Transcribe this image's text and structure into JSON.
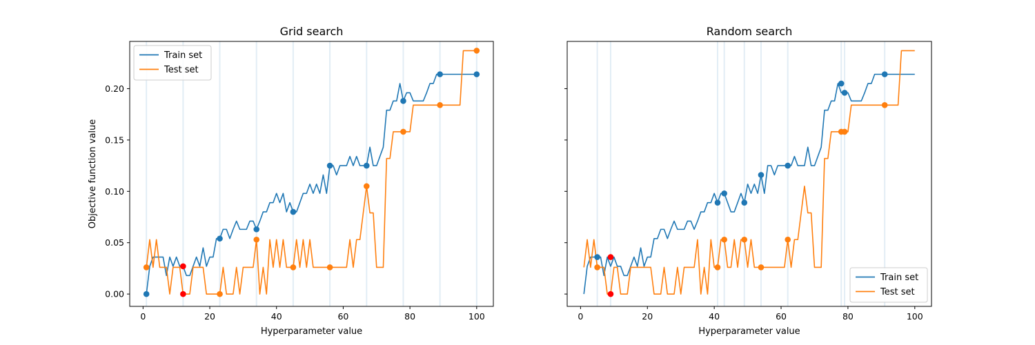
{
  "chart_data": [
    {
      "type": "line",
      "title": "Grid search",
      "xlabel": "Hyperparameter value",
      "ylabel": "Objective function value",
      "xlim": [
        -4,
        105
      ],
      "ylim": [
        -0.012,
        0.246
      ],
      "xticks": [
        0,
        20,
        40,
        60,
        80,
        100
      ],
      "yticks": [
        0.0,
        0.05,
        0.1,
        0.15,
        0.2
      ],
      "ytick_labels": [
        "0.00",
        "0.05",
        "0.10",
        "0.15",
        "0.20"
      ],
      "legend": {
        "position": "top-left",
        "entries": [
          "Train set",
          "Test set"
        ]
      },
      "vlines": [
        1,
        12,
        23,
        34,
        45,
        56,
        67,
        78,
        89,
        100
      ],
      "series": [
        {
          "name": "Train set",
          "color": "#1f77b4",
          "x": [
            1,
            2,
            3,
            4,
            5,
            6,
            7,
            8,
            9,
            10,
            11,
            12,
            13,
            14,
            15,
            16,
            17,
            18,
            19,
            20,
            21,
            22,
            23,
            24,
            25,
            26,
            27,
            28,
            29,
            30,
            31,
            32,
            33,
            34,
            35,
            36,
            37,
            38,
            39,
            40,
            41,
            42,
            43,
            44,
            45,
            46,
            47,
            48,
            49,
            50,
            51,
            52,
            53,
            54,
            55,
            56,
            57,
            58,
            59,
            60,
            61,
            62,
            63,
            64,
            65,
            66,
            67,
            68,
            69,
            70,
            71,
            72,
            73,
            74,
            75,
            76,
            77,
            78,
            79,
            80,
            81,
            82,
            83,
            84,
            85,
            86,
            87,
            88,
            89,
            90,
            91,
            92,
            93,
            94,
            95,
            96,
            97,
            98,
            99,
            100
          ],
          "y": [
            0.0,
            0.027,
            0.036,
            0.036,
            0.036,
            0.036,
            0.018,
            0.036,
            0.027,
            0.036,
            0.027,
            0.027,
            0.018,
            0.018,
            0.027,
            0.036,
            0.027,
            0.045,
            0.027,
            0.036,
            0.036,
            0.054,
            0.054,
            0.063,
            0.063,
            0.054,
            0.063,
            0.071,
            0.063,
            0.063,
            0.063,
            0.071,
            0.071,
            0.063,
            0.071,
            0.08,
            0.08,
            0.089,
            0.089,
            0.098,
            0.089,
            0.098,
            0.08,
            0.089,
            0.08,
            0.08,
            0.089,
            0.098,
            0.098,
            0.107,
            0.098,
            0.107,
            0.098,
            0.116,
            0.098,
            0.125,
            0.125,
            0.116,
            0.125,
            0.125,
            0.125,
            0.134,
            0.125,
            0.134,
            0.125,
            0.125,
            0.125,
            0.143,
            0.125,
            0.125,
            0.134,
            0.143,
            0.179,
            0.179,
            0.188,
            0.188,
            0.205,
            0.188,
            0.196,
            0.196,
            0.188,
            0.188,
            0.188,
            0.188,
            0.196,
            0.205,
            0.205,
            0.214,
            0.214,
            0.214,
            0.214,
            0.214,
            0.214,
            0.214,
            0.214,
            0.214,
            0.214,
            0.214,
            0.214,
            0.214
          ]
        },
        {
          "name": "Test set",
          "color": "#ff7f0e",
          "x": [
            1,
            2,
            3,
            4,
            5,
            6,
            7,
            8,
            9,
            10,
            11,
            12,
            13,
            14,
            15,
            16,
            17,
            18,
            19,
            20,
            21,
            22,
            23,
            24,
            25,
            26,
            27,
            28,
            29,
            30,
            31,
            32,
            33,
            34,
            35,
            36,
            37,
            38,
            39,
            40,
            41,
            42,
            43,
            44,
            45,
            46,
            47,
            48,
            49,
            50,
            51,
            52,
            53,
            54,
            55,
            56,
            57,
            58,
            59,
            60,
            61,
            62,
            63,
            64,
            65,
            66,
            67,
            68,
            69,
            70,
            71,
            72,
            73,
            74,
            75,
            76,
            77,
            78,
            79,
            80,
            81,
            82,
            83,
            84,
            85,
            86,
            87,
            88,
            89,
            90,
            91,
            92,
            93,
            94,
            95,
            96,
            97,
            98,
            99,
            100
          ],
          "y": [
            0.026,
            0.053,
            0.026,
            0.053,
            0.026,
            0.026,
            0.026,
            0.0,
            0.026,
            0.026,
            0.026,
            0.0,
            0.0,
            0.0,
            0.026,
            0.026,
            0.026,
            0.026,
            0.0,
            0.0,
            0.0,
            0.0,
            0.0,
            0.026,
            0.0,
            0.0,
            0.0,
            0.026,
            0.0,
            0.026,
            0.026,
            0.026,
            0.026,
            0.053,
            0.0,
            0.026,
            0.0,
            0.053,
            0.026,
            0.053,
            0.026,
            0.053,
            0.026,
            0.026,
            0.026,
            0.053,
            0.026,
            0.053,
            0.026,
            0.053,
            0.026,
            0.026,
            0.026,
            0.026,
            0.026,
            0.026,
            0.026,
            0.026,
            0.026,
            0.026,
            0.026,
            0.053,
            0.026,
            0.053,
            0.053,
            0.079,
            0.105,
            0.079,
            0.079,
            0.026,
            0.026,
            0.026,
            0.132,
            0.132,
            0.158,
            0.158,
            0.158,
            0.158,
            0.158,
            0.158,
            0.184,
            0.184,
            0.184,
            0.184,
            0.184,
            0.184,
            0.184,
            0.184,
            0.184,
            0.184,
            0.184,
            0.184,
            0.184,
            0.184,
            0.184,
            0.237,
            0.237,
            0.237,
            0.237,
            0.237
          ]
        }
      ],
      "markers": [
        {
          "series": "Train set",
          "color": "#1f77b4",
          "x": [
            1,
            23,
            34,
            45,
            56,
            67,
            78,
            89,
            100
          ],
          "y": [
            0.0,
            0.054,
            0.063,
            0.08,
            0.125,
            0.125,
            0.188,
            0.214,
            0.214
          ]
        },
        {
          "series": "Test set",
          "color": "#ff7f0e",
          "x": [
            1,
            23,
            34,
            45,
            56,
            67,
            78,
            89,
            100
          ],
          "y": [
            0.026,
            0.0,
            0.053,
            0.026,
            0.026,
            0.105,
            0.158,
            0.184,
            0.237
          ]
        },
        {
          "series": "best",
          "color": "#ff0000",
          "x": [
            12,
            12
          ],
          "y": [
            0.027,
            0.0
          ]
        }
      ]
    },
    {
      "type": "line",
      "title": "Random search",
      "xlabel": "Hyperparameter value",
      "ylabel": "",
      "xlim": [
        -4,
        105
      ],
      "ylim": [
        -0.012,
        0.246
      ],
      "xticks": [
        0,
        20,
        40,
        60,
        80,
        100
      ],
      "yticks": [
        0.0,
        0.05,
        0.1,
        0.15,
        0.2
      ],
      "ytick_labels": [],
      "legend": {
        "position": "bottom-right",
        "entries": [
          "Train set",
          "Test set"
        ]
      },
      "vlines": [
        5,
        9,
        41,
        43,
        49,
        54,
        62,
        78,
        79,
        91
      ],
      "series": [
        {
          "name": "Train set",
          "color": "#1f77b4",
          "x": [
            1,
            2,
            3,
            4,
            5,
            6,
            7,
            8,
            9,
            10,
            11,
            12,
            13,
            14,
            15,
            16,
            17,
            18,
            19,
            20,
            21,
            22,
            23,
            24,
            25,
            26,
            27,
            28,
            29,
            30,
            31,
            32,
            33,
            34,
            35,
            36,
            37,
            38,
            39,
            40,
            41,
            42,
            43,
            44,
            45,
            46,
            47,
            48,
            49,
            50,
            51,
            52,
            53,
            54,
            55,
            56,
            57,
            58,
            59,
            60,
            61,
            62,
            63,
            64,
            65,
            66,
            67,
            68,
            69,
            70,
            71,
            72,
            73,
            74,
            75,
            76,
            77,
            78,
            79,
            80,
            81,
            82,
            83,
            84,
            85,
            86,
            87,
            88,
            89,
            90,
            91,
            92,
            93,
            94,
            95,
            96,
            97,
            98,
            99,
            100
          ],
          "y": [
            0.0,
            0.027,
            0.036,
            0.036,
            0.036,
            0.036,
            0.018,
            0.036,
            0.027,
            0.036,
            0.027,
            0.027,
            0.018,
            0.018,
            0.027,
            0.036,
            0.027,
            0.045,
            0.027,
            0.036,
            0.036,
            0.054,
            0.054,
            0.063,
            0.063,
            0.054,
            0.063,
            0.071,
            0.063,
            0.063,
            0.063,
            0.071,
            0.071,
            0.063,
            0.071,
            0.08,
            0.08,
            0.089,
            0.089,
            0.098,
            0.089,
            0.098,
            0.098,
            0.089,
            0.08,
            0.08,
            0.089,
            0.098,
            0.089,
            0.107,
            0.098,
            0.107,
            0.098,
            0.116,
            0.098,
            0.125,
            0.125,
            0.116,
            0.125,
            0.125,
            0.125,
            0.125,
            0.125,
            0.134,
            0.125,
            0.125,
            0.125,
            0.143,
            0.125,
            0.125,
            0.134,
            0.143,
            0.179,
            0.179,
            0.188,
            0.188,
            0.205,
            0.196,
            0.196,
            0.196,
            0.188,
            0.188,
            0.188,
            0.188,
            0.196,
            0.205,
            0.205,
            0.214,
            0.214,
            0.214,
            0.214,
            0.214,
            0.214,
            0.214,
            0.214,
            0.214,
            0.214,
            0.214,
            0.214,
            0.214
          ]
        },
        {
          "name": "Test set",
          "color": "#ff7f0e",
          "x": [
            1,
            2,
            3,
            4,
            5,
            6,
            7,
            8,
            9,
            10,
            11,
            12,
            13,
            14,
            15,
            16,
            17,
            18,
            19,
            20,
            21,
            22,
            23,
            24,
            25,
            26,
            27,
            28,
            29,
            30,
            31,
            32,
            33,
            34,
            35,
            36,
            37,
            38,
            39,
            40,
            41,
            42,
            43,
            44,
            45,
            46,
            47,
            48,
            49,
            50,
            51,
            52,
            53,
            54,
            55,
            56,
            57,
            58,
            59,
            60,
            61,
            62,
            63,
            64,
            65,
            66,
            67,
            68,
            69,
            70,
            71,
            72,
            73,
            74,
            75,
            76,
            77,
            78,
            79,
            80,
            81,
            82,
            83,
            84,
            85,
            86,
            87,
            88,
            89,
            90,
            91,
            92,
            93,
            94,
            95,
            96,
            97,
            98,
            99,
            100
          ],
          "y": [
            0.026,
            0.053,
            0.026,
            0.053,
            0.026,
            0.026,
            0.026,
            0.0,
            0.0,
            0.026,
            0.026,
            0.0,
            0.0,
            0.0,
            0.026,
            0.026,
            0.026,
            0.026,
            0.026,
            0.026,
            0.026,
            0.0,
            0.0,
            0.0,
            0.026,
            0.0,
            0.0,
            0.0,
            0.026,
            0.0,
            0.026,
            0.026,
            0.026,
            0.026,
            0.053,
            0.0,
            0.026,
            0.0,
            0.053,
            0.026,
            0.026,
            0.053,
            0.053,
            0.026,
            0.026,
            0.053,
            0.026,
            0.053,
            0.053,
            0.026,
            0.053,
            0.026,
            0.026,
            0.026,
            0.026,
            0.026,
            0.026,
            0.026,
            0.026,
            0.026,
            0.026,
            0.053,
            0.026,
            0.053,
            0.053,
            0.079,
            0.105,
            0.079,
            0.079,
            0.026,
            0.026,
            0.026,
            0.132,
            0.132,
            0.158,
            0.158,
            0.158,
            0.158,
            0.158,
            0.158,
            0.184,
            0.184,
            0.184,
            0.184,
            0.184,
            0.184,
            0.184,
            0.184,
            0.184,
            0.184,
            0.184,
            0.184,
            0.184,
            0.184,
            0.184,
            0.237,
            0.237,
            0.237,
            0.237,
            0.237
          ]
        }
      ],
      "markers": [
        {
          "series": "Train set",
          "color": "#1f77b4",
          "x": [
            5,
            41,
            43,
            49,
            54,
            62,
            78,
            79,
            91
          ],
          "y": [
            0.036,
            0.089,
            0.098,
            0.089,
            0.116,
            0.125,
            0.205,
            0.196,
            0.214
          ]
        },
        {
          "series": "Test set",
          "color": "#ff7f0e",
          "x": [
            5,
            41,
            43,
            49,
            54,
            62,
            78,
            79,
            91
          ],
          "y": [
            0.026,
            0.026,
            0.053,
            0.053,
            0.026,
            0.053,
            0.158,
            0.158,
            0.184
          ]
        },
        {
          "series": "best",
          "color": "#ff0000",
          "x": [
            9,
            9
          ],
          "y": [
            0.036,
            0.0
          ]
        }
      ]
    }
  ]
}
